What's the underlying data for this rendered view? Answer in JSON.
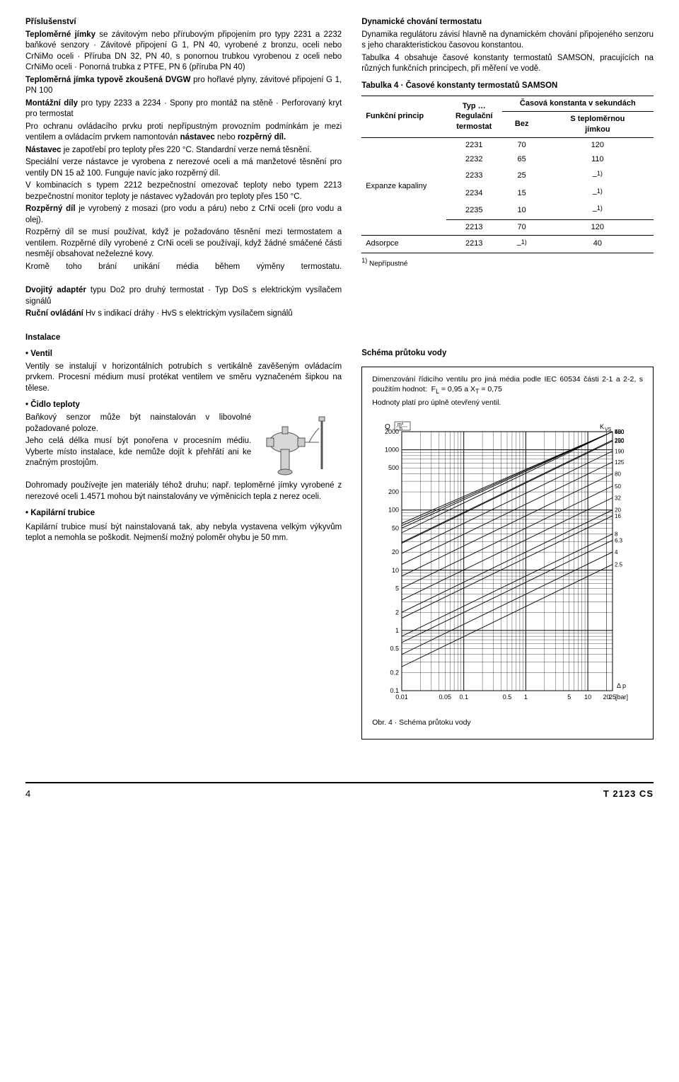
{
  "left": {
    "h_acc": "Příslušenství",
    "p1a": "Teploměrné jímky",
    "p1b": " se závitovým nebo přírubovým připojením pro typy 2231 a 2232 baňkové senzory · Závitové připojení G 1, PN 40, vyrobené z bronzu, oceli nebo CrNiMo oceli · Příruba DN 32, PN 40, s ponornou trubkou vyrobenou z oceli nebo CrNiMo oceli · Ponorná trubka z PTFE, PN 6 (příruba PN 40)",
    "p2a": "Teploměrná jímka typově zkoušená DVGW",
    "p2b": " pro hořlavé plyny, závitové připojení G 1, PN 100",
    "p3a": "Montážní díly",
    "p3b": " pro typy 2233 a 2234 · Spony pro montáž na stěně · Perforovaný kryt pro termostat",
    "p4": "Pro ochranu ovládacího prvku proti nepřípustným provozním podmínkám je mezi ventilem a ovládacím prvkem namontován ",
    "p4b": "nástavec",
    "p4c": " nebo ",
    "p4d": "rozpěrný díl.",
    "p5a": "Nástavec",
    "p5b": " je zapotřebí pro teploty přes 220 °C. Standardní verze nemá těsnění.",
    "p6": "Speciální verze nástavce je vyrobena z nerezové oceli a má manžetové těsnění pro ventily DN 15 až 100. Funguje navíc jako rozpěrný díl.",
    "p7": "V kombinacích s typem 2212 bezpečnostní omezovač teploty nebo typem 2213 bezpečnostní monitor teploty je nástavec vyžadován pro teploty přes 150 °C.",
    "p8a": "Rozpěrný díl",
    "p8b": " je vyrobený z mosazi (pro vodu a páru) nebo z CrNi oceli (pro vodu a olej).",
    "p9": "Rozpěrný díl se musí používat, když je požadováno těsnění mezi termostatem a ventilem. Rozpěrné díly vyrobené z CrNi oceli se používají, když žádné smáčené části nesmějí obsahovat neželezné kovy.",
    "p10": "Kromě toho brání unikání média během výměny termostatu.",
    "p_da1": "Dvojitý adaptér",
    "p_da1b": " typu Do2 pro druhý termostat · Typ DoS s elektrickým vysílačem signálů",
    "p_da2": "Ruční ovládání",
    "p_da2b": " Hv s indikací dráhy · HvS s elektrickým vysílačem signálů",
    "h_inst": "Instalace",
    "h_ventil": "Ventil",
    "p_ventil": "Ventily se instalují v horizontálních potrubích s vertikálně zavěšeným ovládacím prvkem. Procesní médium musí protékat ventilem ve směru vyznačeném šipkou na tělese.",
    "h_cidlo": "Čidlo teploty",
    "p_cidlo1": "Baňkový senzor může být nainstalován v libovolné požadované poloze.",
    "p_cidlo2": "Jeho celá délka musí být ponořena v procesním médiu. Vyberte místo instalace, kde nemůže dojít k přehřátí ani ke značným prostojům.",
    "p_cidlo3": "Dohromady používejte jen materiály téhož druhu; např. teploměrné jímky vyrobené z nerezové oceli 1.4571 mohou být nainstalovány ve výměnicích tepla z nerez oceli.",
    "h_kap": "Kapilární trubice",
    "p_kap": "Kapilární trubice musí být nainstalovaná tak, aby nebyla vystavena velkým výkyvům teplot a nemohla se poškodit. Nejmenší možný poloměr ohybu je 50 mm."
  },
  "right": {
    "h_dyn": "Dynamické chování termostatu",
    "p_dyn1": "Dynamika regulátoru závisí hlavně na dynamickém chování připojeného senzoru s jeho charakteristickou časovou konstantou.",
    "p_dyn2": "Tabulka 4 obsahuje časové konstanty termostatů SAMSON, pracujících na různých funkčních principech, při měření ve vodě.",
    "tab4_title": "Tabulka 4 · Časové konstanty termostatů SAMSON",
    "th1": "Funkční princip",
    "th2": "Typ …\nRegulační termostat",
    "th3": "Časová konstanta v sekundách",
    "th3a": "Bez",
    "th3b": "S teploměrnou jímkou",
    "rows": [
      {
        "g": "Expanze kapaliny",
        "t": "2231",
        "a": "70",
        "b": "120"
      },
      {
        "g": "",
        "t": "2232",
        "a": "65",
        "b": "110"
      },
      {
        "g": "",
        "t": "2233",
        "a": "25",
        "b": "–1)"
      },
      {
        "g": "",
        "t": "2234",
        "a": "15",
        "b": "–1)"
      },
      {
        "g": "",
        "t": "2235",
        "a": "10",
        "b": "–1)"
      },
      {
        "g": "",
        "t": "2213",
        "a": "70",
        "b": "120"
      },
      {
        "g": "Adsorpce",
        "t": "2213",
        "a": "–1)",
        "b": "40"
      }
    ],
    "note1": "1) Nepřípustné",
    "h_schema": "Schéma průtoku vody",
    "box1": "Dimenzování řídicího ventilu pro jiná média podle IEC 60534 části 2-1 a 2-2, s použitím hodnot:  F_L = 0,95 a X_T = 0,75",
    "box2": "Hodnoty platí pro úplně otevřený ventil.",
    "fig_caption": "Obr. 4 · Schéma průtoku vody",
    "chart": {
      "y_label": "Q",
      "y_unit": "m³/h",
      "x_label": "Δ p",
      "x_unit": "[bar]",
      "kvs_label": "K_VS",
      "y_ticks": [
        "2000",
        "1000",
        "500",
        "200",
        "100",
        "50",
        "20",
        "10",
        "5",
        "2",
        "1",
        "0.5",
        "0.2",
        "0.1"
      ],
      "x_ticks": [
        "0.01",
        "0.05",
        "0.1",
        "0.5",
        "1",
        "5",
        "10",
        "20",
        "25"
      ],
      "kvs_values": [
        "600",
        "550",
        "500",
        "420",
        "290",
        "280",
        "190",
        "125",
        "80",
        "50",
        "32",
        "20",
        "16",
        "8",
        "6.3",
        "4",
        "2.5"
      ]
    }
  },
  "footer": {
    "page": "4",
    "code": "T 2123  CS"
  }
}
